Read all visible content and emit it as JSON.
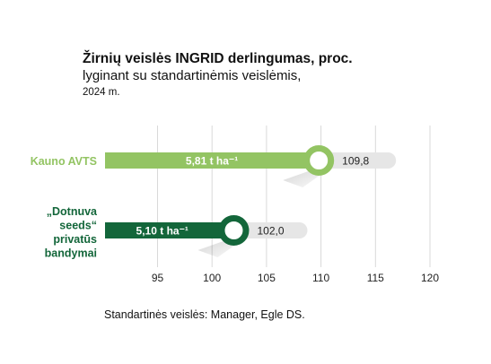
{
  "title": "Žirnių veislės INGRID derlingumas, proc.",
  "subtitle": "lyginant su standartinėmis veislėmis,",
  "year_label": "2024 m.",
  "footnote": "Standartinės veislės: Manager, Egle DS.",
  "colors": {
    "light_green": "#93c463",
    "dark_green": "#13663a",
    "grey": "#e6e6e6"
  },
  "chart_data": {
    "type": "bar",
    "orientation": "horizontal",
    "title": "Žirnių veislės INGRID derlingumas, proc.",
    "subtitle": "lyginant su standartinėmis veislėmis, 2024 m.",
    "categories": [
      "Kauno AVTS",
      "„Dotnuva seeds“ privatūs bandymai"
    ],
    "category_lines": [
      [
        "Kauno AVTS"
      ],
      [
        "„Dotnuva",
        "seeds“",
        "privatūs",
        "bandymai"
      ]
    ],
    "values": [
      109.8,
      102.0
    ],
    "value_labels": [
      "109,8",
      "102,0"
    ],
    "yield_labels": [
      "5,81 t ha⁻¹",
      "5,10 t ha⁻¹"
    ],
    "xlim": [
      90,
      122
    ],
    "xticks": [
      95,
      100,
      105,
      110,
      115,
      120
    ],
    "grid": true
  }
}
